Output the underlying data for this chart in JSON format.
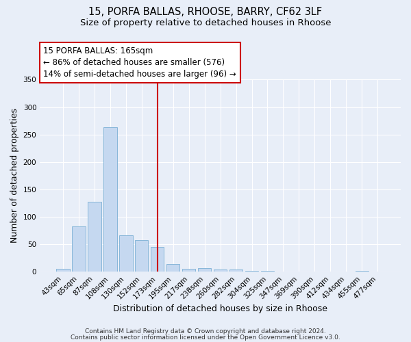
{
  "title1": "15, PORFA BALLAS, RHOOSE, BARRY, CF62 3LF",
  "title2": "Size of property relative to detached houses in Rhoose",
  "xlabel": "Distribution of detached houses by size in Rhoose",
  "ylabel": "Number of detached properties",
  "categories": [
    "43sqm",
    "65sqm",
    "87sqm",
    "108sqm",
    "130sqm",
    "152sqm",
    "173sqm",
    "195sqm",
    "217sqm",
    "238sqm",
    "260sqm",
    "282sqm",
    "304sqm",
    "325sqm",
    "347sqm",
    "369sqm",
    "390sqm",
    "412sqm",
    "434sqm",
    "455sqm",
    "477sqm"
  ],
  "values": [
    5,
    82,
    128,
    263,
    66,
    57,
    45,
    14,
    5,
    6,
    4,
    4,
    2,
    1,
    0,
    0,
    0,
    0,
    0,
    2,
    0
  ],
  "bar_color": "#c5d8f0",
  "bar_edgecolor": "#7bafd4",
  "vline_x": 6.0,
  "vline_color": "#cc0000",
  "annotation_title": "15 PORFA BALLAS: 165sqm",
  "annotation_line1": "← 86% of detached houses are smaller (576)",
  "annotation_line2": "14% of semi-detached houses are larger (96) →",
  "annotation_box_edgecolor": "#cc0000",
  "ylim": [
    0,
    350
  ],
  "yticks": [
    0,
    50,
    100,
    150,
    200,
    250,
    300,
    350
  ],
  "footer1": "Contains HM Land Registry data © Crown copyright and database right 2024.",
  "footer2": "Contains public sector information licensed under the Open Government Licence v3.0.",
  "bg_color": "#e8eef8",
  "grid_color": "#ffffff",
  "title1_fontsize": 10.5,
  "title2_fontsize": 9.5,
  "axis_label_fontsize": 9,
  "tick_fontsize": 7.5,
  "annotation_fontsize": 8.5,
  "footer_fontsize": 6.5
}
